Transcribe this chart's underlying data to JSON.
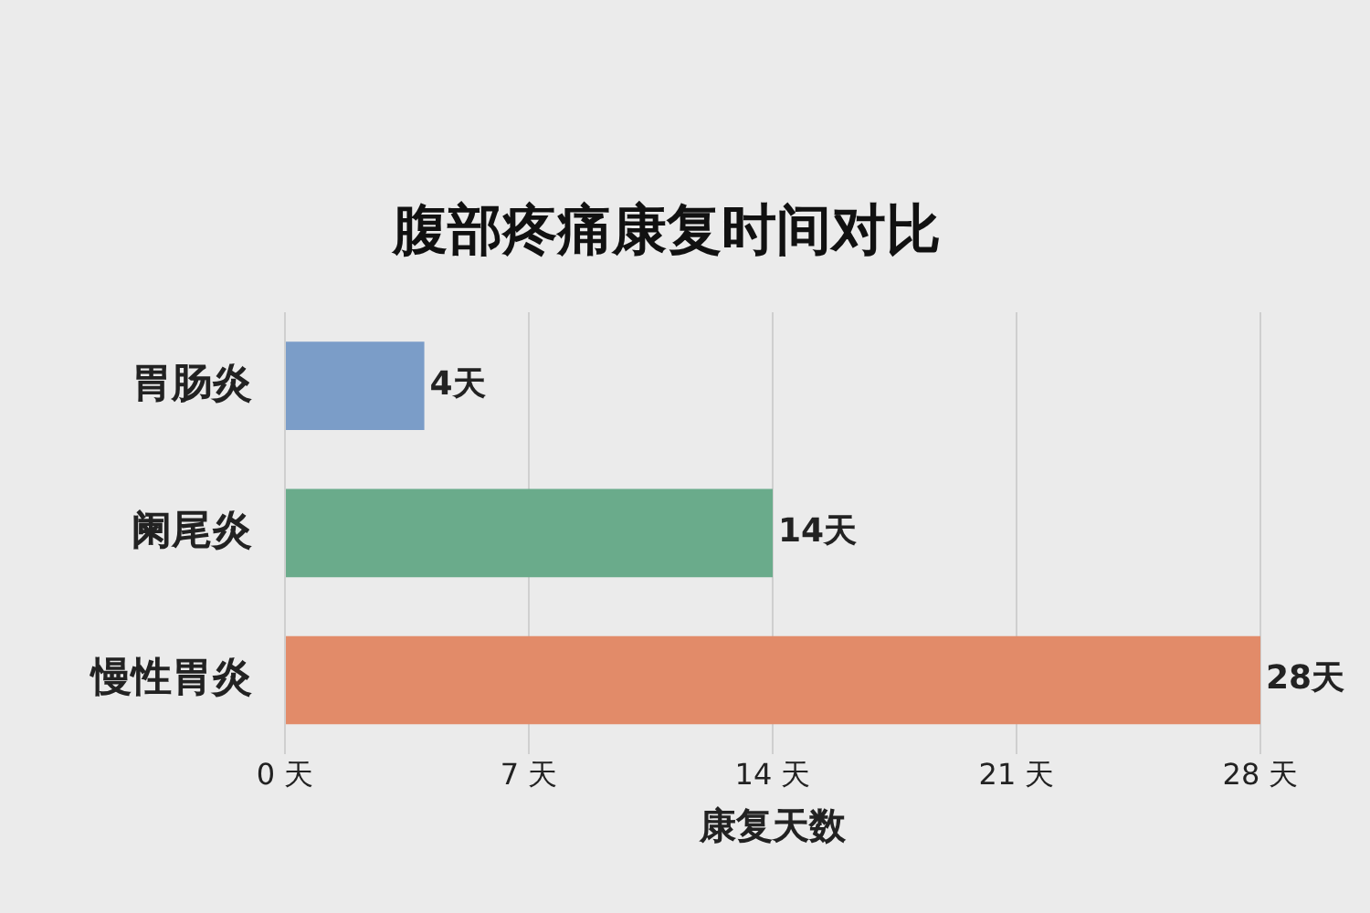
{
  "chart_data": {
    "type": "bar",
    "orientation": "horizontal",
    "title": "腹部疼痛康复时间对比",
    "xlabel": "康复天数",
    "categories": [
      "胃肠炎",
      "阑尾炎",
      "慢性胃炎"
    ],
    "values": [
      4,
      14,
      28
    ],
    "colors": [
      "#7b9dc8",
      "#6aab8b",
      "#e28b69"
    ],
    "value_labels": [
      "4天",
      "14天",
      "28天"
    ],
    "xlim": [
      0,
      28
    ],
    "xticks": [
      {
        "value": 0,
        "label": "0 天"
      },
      {
        "value": 7,
        "label": "7 天"
      },
      {
        "value": 14,
        "label": "14 天"
      },
      {
        "value": 21,
        "label": "21 天"
      },
      {
        "value": 28,
        "label": "28 天"
      }
    ],
    "grid": "x",
    "legend": false
  }
}
